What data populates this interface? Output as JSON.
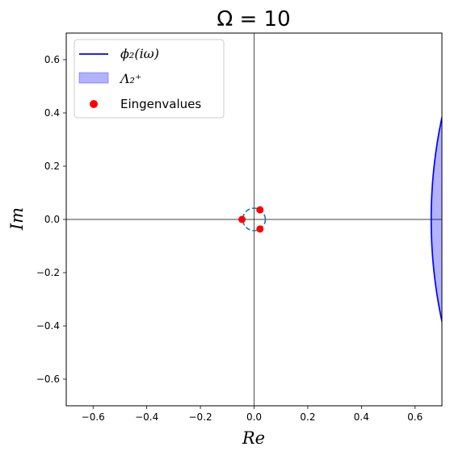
{
  "chart_data": {
    "type": "scatter",
    "title": "Ω = 10",
    "xlabel": "Re",
    "ylabel": "Im",
    "xlim": [
      -0.7,
      0.7
    ],
    "ylim": [
      -0.7,
      0.7
    ],
    "xticks": [
      -0.6,
      -0.4,
      -0.2,
      0.0,
      0.2,
      0.4,
      0.6
    ],
    "yticks": [
      -0.6,
      -0.4,
      -0.2,
      0.0,
      0.2,
      0.4,
      0.6
    ],
    "xtick_labels": [
      "−0.6",
      "−0.4",
      "−0.2",
      "0.0",
      "0.2",
      "0.4",
      "0.6"
    ],
    "ytick_labels": [
      "−0.6",
      "−0.4",
      "−0.2",
      "0.0",
      "0.2",
      "0.4",
      "0.6"
    ],
    "reference_lines": {
      "x0": true,
      "y0": true
    },
    "grid": false,
    "legend_position": "upper-left",
    "legend": [
      {
        "kind": "line",
        "text": "ϕ₂(iω)",
        "color": "#0000ff"
      },
      {
        "kind": "patch",
        "text": "Λ₂⁺",
        "color": "#0000ff"
      },
      {
        "kind": "marker",
        "text": "Eingenvalues",
        "color": "#ff0000"
      }
    ],
    "boundary_curve": {
      "name": "ϕ₂(iω)",
      "color": "#0000ff",
      "shape": "arc",
      "center": [
        2.51,
        0.0
      ],
      "radius": 1.85,
      "fill_region": "right of curve",
      "fill_color": "#0000ff",
      "fill_opacity": 0.3
    },
    "dashed_circle": {
      "center": [
        0.0,
        0.0
      ],
      "radius": 0.042,
      "color": "#1f77b4"
    },
    "eigenvalues": {
      "name": "Eingenvalues",
      "color": "#ff0000",
      "points": [
        {
          "x": -0.045,
          "y": 0.0
        },
        {
          "x": 0.022,
          "y": 0.036
        },
        {
          "x": 0.022,
          "y": -0.036
        }
      ]
    }
  }
}
